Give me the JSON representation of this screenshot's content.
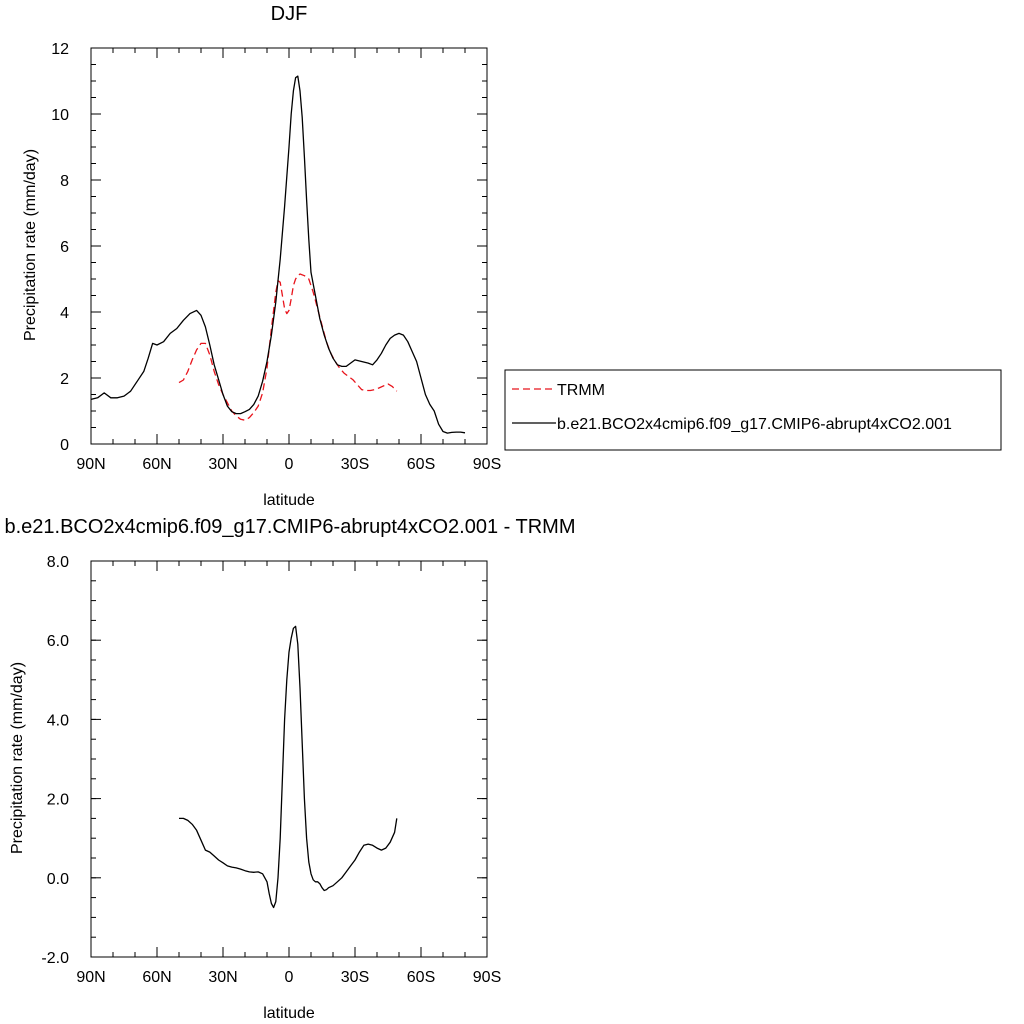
{
  "chart_data": [
    {
      "type": "line",
      "title": "DJF",
      "xlabel": "latitude",
      "ylabel": "Precipitation rate (mm/day)",
      "xlim": [
        -90,
        90
      ],
      "ylim": [
        0,
        12
      ],
      "x_ticks": [
        {
          "value": -90,
          "label": "90N"
        },
        {
          "value": -60,
          "label": "60N"
        },
        {
          "value": -30,
          "label": "30N"
        },
        {
          "value": 0,
          "label": "0"
        },
        {
          "value": 30,
          "label": "30S"
        },
        {
          "value": 60,
          "label": "60S"
        },
        {
          "value": 90,
          "label": "90S"
        }
      ],
      "y_ticks": [
        {
          "value": 0,
          "label": "0"
        },
        {
          "value": 2,
          "label": "2"
        },
        {
          "value": 4,
          "label": "4"
        },
        {
          "value": 6,
          "label": "6"
        },
        {
          "value": 8,
          "label": "8"
        },
        {
          "value": 10,
          "label": "10"
        },
        {
          "value": 12,
          "label": "12"
        }
      ],
      "grid": false,
      "legend_position": "right",
      "series": [
        {
          "name": "TRMM",
          "color": "#e8141c",
          "style": "dashed",
          "points": [
            [
              -50,
              1.86
            ],
            [
              -48,
              1.94
            ],
            [
              -46,
              2.2
            ],
            [
              -44,
              2.55
            ],
            [
              -42,
              2.85
            ],
            [
              -40,
              3.05
            ],
            [
              -38,
              3.05
            ],
            [
              -36,
              2.7
            ],
            [
              -34,
              2.2
            ],
            [
              -32,
              1.8
            ],
            [
              -30,
              1.5
            ],
            [
              -28,
              1.25
            ],
            [
              -26,
              1.0
            ],
            [
              -24,
              0.85
            ],
            [
              -22,
              0.75
            ],
            [
              -20,
              0.72
            ],
            [
              -18,
              0.8
            ],
            [
              -16,
              0.95
            ],
            [
              -14,
              1.15
            ],
            [
              -12,
              1.55
            ],
            [
              -10,
              2.3
            ],
            [
              -8,
              3.5
            ],
            [
              -6,
              4.6
            ],
            [
              -5,
              4.95
            ],
            [
              -4,
              4.9
            ],
            [
              -3,
              4.5
            ],
            [
              -2,
              4.1
            ],
            [
              -1,
              3.95
            ],
            [
              0,
              4.05
            ],
            [
              1,
              4.4
            ],
            [
              2,
              4.8
            ],
            [
              3,
              5.0
            ],
            [
              4,
              5.1
            ],
            [
              5,
              5.15
            ],
            [
              7,
              5.1
            ],
            [
              9,
              5.0
            ],
            [
              11,
              4.6
            ],
            [
              13,
              4.1
            ],
            [
              15,
              3.6
            ],
            [
              17,
              3.1
            ],
            [
              19,
              2.75
            ],
            [
              21,
              2.5
            ],
            [
              23,
              2.3
            ],
            [
              25,
              2.15
            ],
            [
              27,
              2.05
            ],
            [
              29,
              1.95
            ],
            [
              31,
              1.8
            ],
            [
              33,
              1.65
            ],
            [
              35,
              1.62
            ],
            [
              37,
              1.62
            ],
            [
              39,
              1.65
            ],
            [
              41,
              1.7
            ],
            [
              43,
              1.76
            ],
            [
              45,
              1.82
            ],
            [
              47,
              1.74
            ],
            [
              49,
              1.6
            ]
          ]
        },
        {
          "name": "b.e21.BCO2x4cmip6.f09_g17.CMIP6-abrupt4xCO2.001",
          "color": "#000000",
          "style": "solid",
          "points": [
            [
              -90,
              1.35
            ],
            [
              -87,
              1.4
            ],
            [
              -84,
              1.55
            ],
            [
              -81,
              1.4
            ],
            [
              -78,
              1.4
            ],
            [
              -75,
              1.45
            ],
            [
              -72,
              1.6
            ],
            [
              -69,
              1.9
            ],
            [
              -66,
              2.2
            ],
            [
              -64,
              2.6
            ],
            [
              -62,
              3.05
            ],
            [
              -60,
              3.0
            ],
            [
              -57,
              3.1
            ],
            [
              -54,
              3.35
            ],
            [
              -51,
              3.5
            ],
            [
              -48,
              3.75
            ],
            [
              -45,
              3.95
            ],
            [
              -42,
              4.05
            ],
            [
              -40,
              3.9
            ],
            [
              -38,
              3.55
            ],
            [
              -36,
              3.0
            ],
            [
              -34,
              2.4
            ],
            [
              -32,
              1.95
            ],
            [
              -30,
              1.5
            ],
            [
              -28,
              1.15
            ],
            [
              -26,
              0.98
            ],
            [
              -24,
              0.92
            ],
            [
              -22,
              0.92
            ],
            [
              -20,
              0.98
            ],
            [
              -18,
              1.05
            ],
            [
              -16,
              1.2
            ],
            [
              -14,
              1.45
            ],
            [
              -12,
              1.9
            ],
            [
              -10,
              2.5
            ],
            [
              -8,
              3.3
            ],
            [
              -6,
              4.3
            ],
            [
              -4,
              5.6
            ],
            [
              -2,
              7.2
            ],
            [
              0,
              9.0
            ],
            [
              1,
              10.0
            ],
            [
              2,
              10.7
            ],
            [
              3,
              11.1
            ],
            [
              4,
              11.15
            ],
            [
              5,
              10.7
            ],
            [
              6,
              9.9
            ],
            [
              7,
              8.7
            ],
            [
              8,
              7.4
            ],
            [
              9,
              6.2
            ],
            [
              10,
              5.2
            ],
            [
              12,
              4.5
            ],
            [
              14,
              3.8
            ],
            [
              16,
              3.3
            ],
            [
              18,
              2.9
            ],
            [
              20,
              2.6
            ],
            [
              22,
              2.4
            ],
            [
              24,
              2.35
            ],
            [
              26,
              2.35
            ],
            [
              28,
              2.45
            ],
            [
              30,
              2.55
            ],
            [
              33,
              2.5
            ],
            [
              36,
              2.45
            ],
            [
              38,
              2.4
            ],
            [
              40,
              2.55
            ],
            [
              42,
              2.75
            ],
            [
              44,
              3.0
            ],
            [
              46,
              3.2
            ],
            [
              48,
              3.3
            ],
            [
              50,
              3.35
            ],
            [
              52,
              3.3
            ],
            [
              54,
              3.1
            ],
            [
              56,
              2.8
            ],
            [
              58,
              2.5
            ],
            [
              60,
              2.0
            ],
            [
              62,
              1.5
            ],
            [
              64,
              1.2
            ],
            [
              66,
              1.0
            ],
            [
              68,
              0.6
            ],
            [
              70,
              0.38
            ],
            [
              72,
              0.33
            ],
            [
              74,
              0.35
            ],
            [
              76,
              0.36
            ],
            [
              78,
              0.36
            ],
            [
              80,
              0.34
            ]
          ]
        }
      ]
    },
    {
      "type": "line",
      "title": "b.e21.BCO2x4cmip6.f09_g17.CMIP6-abrupt4xCO2.001 - TRMM",
      "xlabel": "latitude",
      "ylabel": "Precipitation rate (mm/day)",
      "xlim": [
        -90,
        90
      ],
      "ylim": [
        -2,
        8
      ],
      "x_ticks": [
        {
          "value": -90,
          "label": "90N"
        },
        {
          "value": -60,
          "label": "60N"
        },
        {
          "value": -30,
          "label": "30N"
        },
        {
          "value": 0,
          "label": "0"
        },
        {
          "value": 30,
          "label": "30S"
        },
        {
          "value": 60,
          "label": "60S"
        },
        {
          "value": 90,
          "label": "90S"
        }
      ],
      "y_ticks": [
        {
          "value": -2,
          "label": "-2.0"
        },
        {
          "value": 0,
          "label": "0.0"
        },
        {
          "value": 2,
          "label": "2.0"
        },
        {
          "value": 4,
          "label": "4.0"
        },
        {
          "value": 6,
          "label": "6.0"
        },
        {
          "value": 8,
          "label": "8.0"
        }
      ],
      "grid": false,
      "series": [
        {
          "color": "#000000",
          "style": "solid",
          "points": [
            [
              -50,
              1.5
            ],
            [
              -48,
              1.5
            ],
            [
              -46,
              1.45
            ],
            [
              -44,
              1.35
            ],
            [
              -42,
              1.2
            ],
            [
              -40,
              0.95
            ],
            [
              -38,
              0.7
            ],
            [
              -36,
              0.65
            ],
            [
              -34,
              0.55
            ],
            [
              -32,
              0.45
            ],
            [
              -30,
              0.38
            ],
            [
              -28,
              0.3
            ],
            [
              -26,
              0.27
            ],
            [
              -24,
              0.25
            ],
            [
              -22,
              0.22
            ],
            [
              -20,
              0.18
            ],
            [
              -18,
              0.15
            ],
            [
              -16,
              0.14
            ],
            [
              -14,
              0.15
            ],
            [
              -12,
              0.1
            ],
            [
              -10,
              -0.1
            ],
            [
              -9,
              -0.4
            ],
            [
              -8,
              -0.65
            ],
            [
              -7,
              -0.75
            ],
            [
              -6,
              -0.6
            ],
            [
              -5,
              0.0
            ],
            [
              -4,
              1.0
            ],
            [
              -3,
              2.5
            ],
            [
              -2,
              4.0
            ],
            [
              -1,
              5.0
            ],
            [
              0,
              5.7
            ],
            [
              1,
              6.05
            ],
            [
              2,
              6.3
            ],
            [
              3,
              6.35
            ],
            [
              4,
              5.9
            ],
            [
              5,
              4.8
            ],
            [
              6,
              3.4
            ],
            [
              7,
              2.0
            ],
            [
              8,
              1.0
            ],
            [
              9,
              0.4
            ],
            [
              10,
              0.1
            ],
            [
              11,
              -0.05
            ],
            [
              12,
              -0.1
            ],
            [
              13,
              -0.1
            ],
            [
              14,
              -0.15
            ],
            [
              15,
              -0.25
            ],
            [
              16,
              -0.32
            ],
            [
              17,
              -0.3
            ],
            [
              18,
              -0.25
            ],
            [
              20,
              -0.2
            ],
            [
              22,
              -0.1
            ],
            [
              24,
              0.0
            ],
            [
              26,
              0.15
            ],
            [
              28,
              0.3
            ],
            [
              30,
              0.45
            ],
            [
              32,
              0.65
            ],
            [
              34,
              0.82
            ],
            [
              36,
              0.85
            ],
            [
              38,
              0.82
            ],
            [
              40,
              0.75
            ],
            [
              42,
              0.7
            ],
            [
              44,
              0.75
            ],
            [
              46,
              0.9
            ],
            [
              48,
              1.15
            ],
            [
              49,
              1.5
            ]
          ]
        }
      ]
    }
  ]
}
